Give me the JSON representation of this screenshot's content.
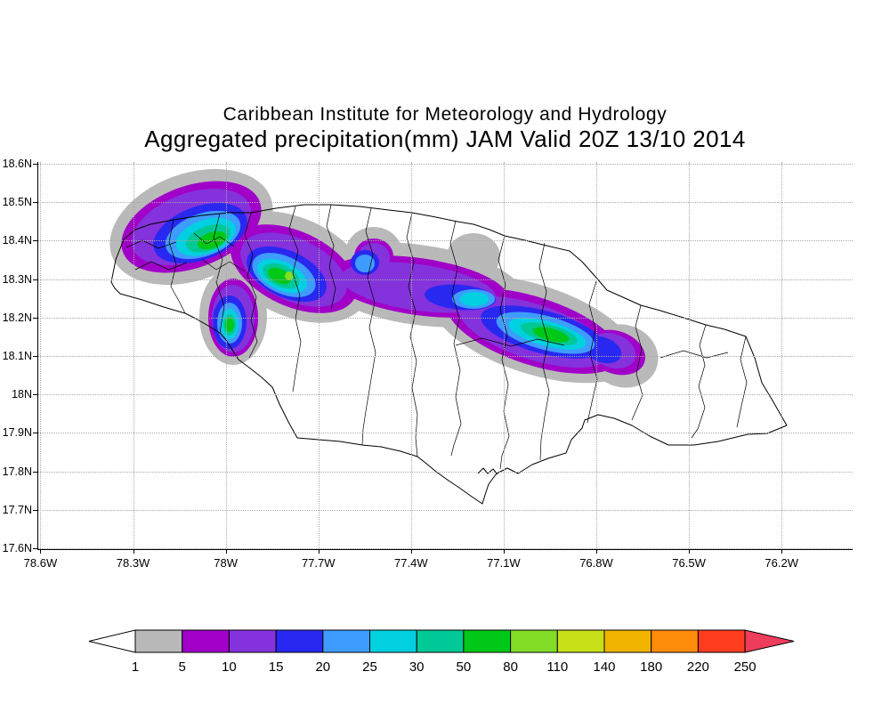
{
  "header": {
    "line1": "Caribbean Institute for Meteorology and Hydrology",
    "line2": "Aggregated precipitation(mm) JAM Valid 20Z 13/10 2014"
  },
  "chart_data": {
    "type": "heatmap",
    "title": "Caribbean Institute for Meteorology and Hydrology",
    "subtitle": "Aggregated precipitation(mm) JAM Valid 20Z 13/10 2014",
    "variable": "Aggregated precipitation",
    "units": "mm",
    "region": "JAM (Jamaica)",
    "valid_time": "20Z 13/10 2014",
    "y_axis": {
      "ticks": [
        "18.6N",
        "18.5N",
        "18.4N",
        "18.3N",
        "18.2N",
        "18.1N",
        "18N",
        "17.9N",
        "17.8N",
        "17.7N",
        "17.6N"
      ],
      "range": [
        "17.6N",
        "18.6N"
      ],
      "interval_deg": 0.1
    },
    "x_axis": {
      "ticks": [
        "78.6W",
        "78.3W",
        "78W",
        "77.7W",
        "77.4W",
        "77.1W",
        "76.8W",
        "76.5W",
        "76.2W"
      ],
      "range": [
        "78.6W",
        "76.2W"
      ],
      "interval_deg": 0.3
    },
    "grid": "dotted",
    "legend_position": "bottom colorbar with under/over arrows",
    "colorbar": {
      "levels": [
        "1",
        "5",
        "10",
        "15",
        "20",
        "25",
        "30",
        "50",
        "80",
        "110",
        "140",
        "180",
        "220",
        "250"
      ],
      "colors": [
        "#ffffff",
        "#b9b9b9",
        "#a000c8",
        "#8432dc",
        "#2828f0",
        "#3e9cff",
        "#00d0e0",
        "#00c896",
        "#00c818",
        "#82dc28",
        "#c8e018",
        "#f0b400",
        "#ff8c0a",
        "#ff3c1e",
        "#ee3c5c"
      ]
    },
    "maxima": [
      {
        "lon": "78.06W",
        "lat": "18.40N",
        "value_mm": "50-80"
      },
      {
        "lon": "77.80W",
        "lat": "18.31N",
        "value_mm": "80-110"
      },
      {
        "lon": "77.99W",
        "lat": "18.18N",
        "value_mm": "50-80"
      },
      {
        "lon": "77.55W",
        "lat": "18.34N",
        "value_mm": "20-25"
      },
      {
        "lon": "77.20W",
        "lat": "18.25N",
        "value_mm": "25-30"
      },
      {
        "lon": "76.95W",
        "lat": "18.16N",
        "value_mm": "50-80"
      }
    ],
    "description": "Filled precipitation contours forming an elongated WNW-ESE band across interior Jamaica, outer 1-5mm gray shading, purple 5-15mm band, and embedded blue/cyan/green cores exceeding 20-80mm."
  }
}
